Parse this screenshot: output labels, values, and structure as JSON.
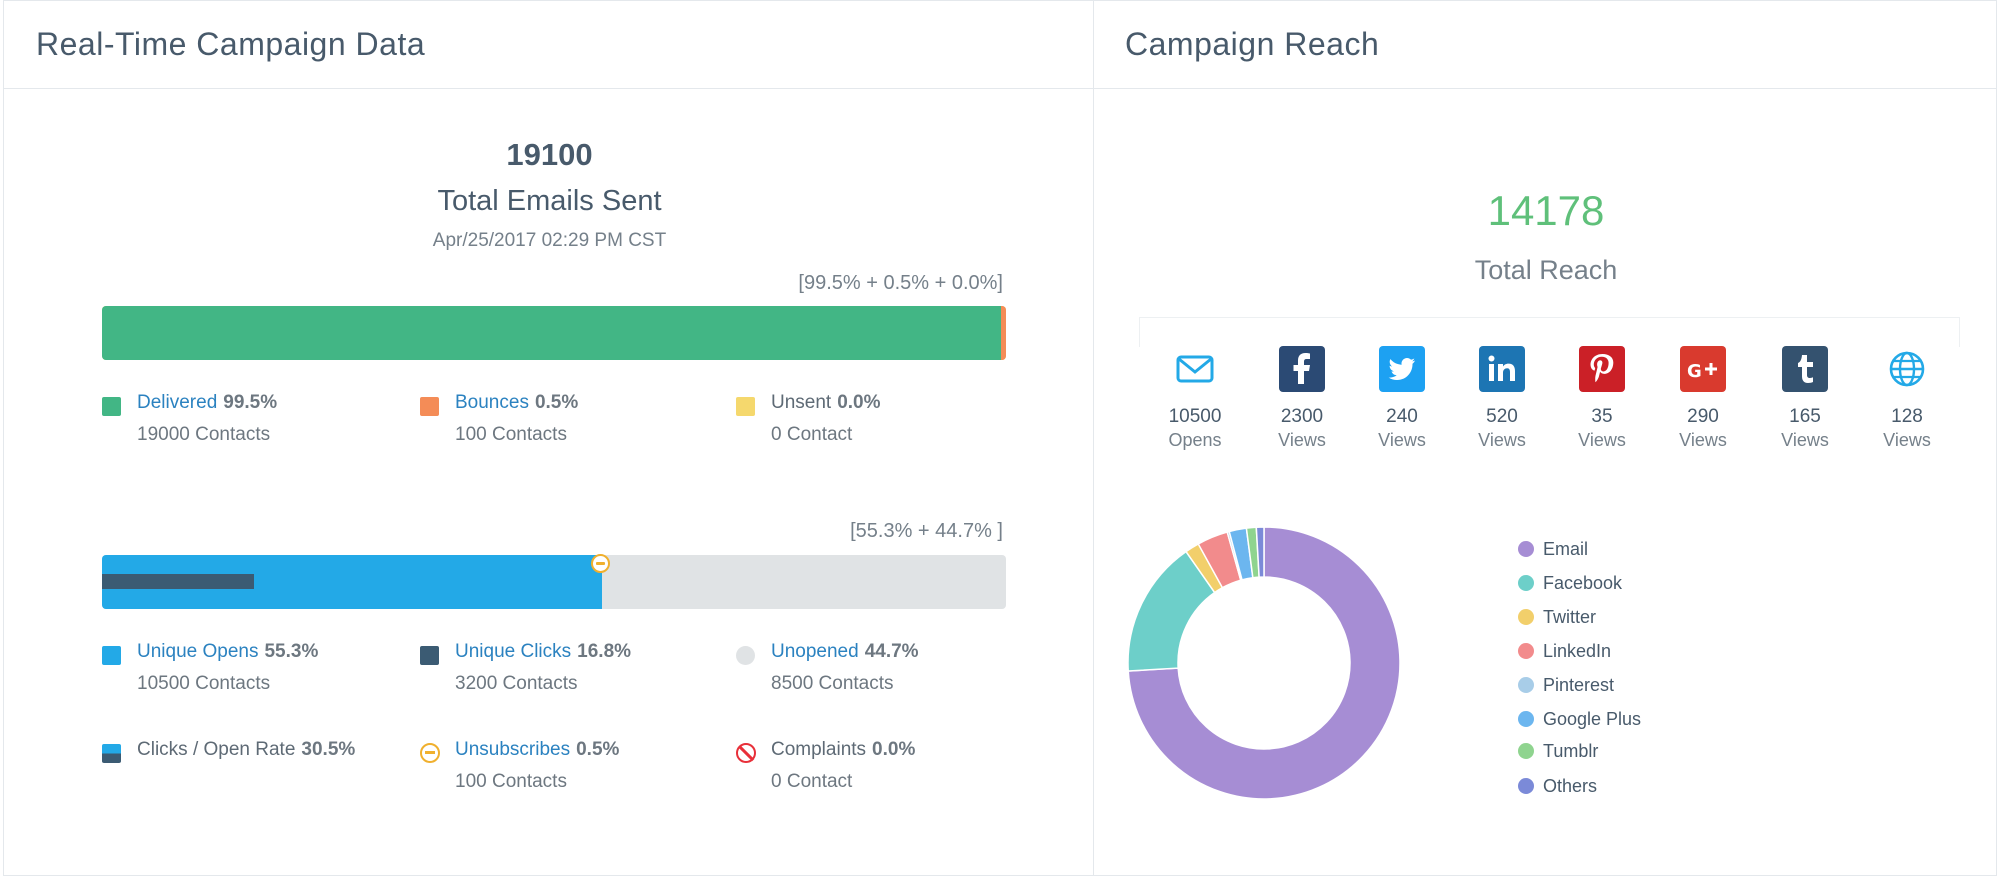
{
  "campaign": {
    "title": "Real-Time Campaign Data",
    "total_sent": "19100",
    "total_sent_label": "Total Emails Sent",
    "date": "Apr/25/2017 02:29 PM CST",
    "delivery_breakdown": "[99.5% + 0.5% + 0.0%]",
    "opens_breakdown": "[55.3% + 44.7% ]",
    "delivery_bar": {
      "delivered": 0.995,
      "bounces": 0.005,
      "unsent": 0.0
    },
    "opens_bar": {
      "opens": 0.553,
      "clicks": 0.168,
      "unopened": 0.447,
      "unsubscribes_marker": 0.553
    },
    "stats": {
      "delivered": {
        "label": "Delivered",
        "pct": "99.5%",
        "sub": "19000 Contacts",
        "color": "#42b685"
      },
      "bounces": {
        "label": "Bounces",
        "pct": "0.5%",
        "sub": "100 Contacts",
        "color": "#f48c57"
      },
      "unsent": {
        "label": "Unsent",
        "pct": "0.0%",
        "sub": "0 Contact",
        "color": "#f5d86d"
      },
      "unique_opens": {
        "label": "Unique Opens",
        "pct": "55.3%",
        "sub": "10500 Contacts",
        "color": "#23a9e7"
      },
      "unique_clicks": {
        "label": "Unique Clicks",
        "pct": "16.8%",
        "sub": "3200 Contacts",
        "color": "#3b5b73"
      },
      "unopened": {
        "label": "Unopened",
        "pct": "44.7%",
        "sub": "8500 Contacts",
        "color": "#e0e3e5"
      },
      "click_open_rate": {
        "label": "Clicks / Open Rate",
        "pct": "30.5%"
      },
      "unsubscribes": {
        "label": "Unsubscribes",
        "pct": "0.5%",
        "sub": "100 Contacts",
        "color": "#f0b02e"
      },
      "complaints": {
        "label": "Complaints",
        "pct": "0.0%",
        "sub": "0 Contact",
        "color": "#e8303a"
      }
    }
  },
  "reach": {
    "title": "Campaign Reach",
    "total": "14178",
    "total_label": "Total Reach",
    "channels": [
      {
        "name": "email",
        "icon": "envelope-icon",
        "value": "10500",
        "unit": "Opens",
        "color": "#23a9e7"
      },
      {
        "name": "facebook",
        "icon": "facebook-icon",
        "value": "2300",
        "unit": "Views",
        "color": "#2b4a74"
      },
      {
        "name": "twitter",
        "icon": "twitter-icon",
        "value": "240",
        "unit": "Views",
        "color": "#1da1f2"
      },
      {
        "name": "linkedin",
        "icon": "linkedin-icon",
        "value": "520",
        "unit": "Views",
        "color": "#1d75b3"
      },
      {
        "name": "pinterest",
        "icon": "pinterest-icon",
        "value": "35",
        "unit": "Views",
        "color": "#cb2027"
      },
      {
        "name": "google-plus",
        "icon": "google-plus-icon",
        "value": "290",
        "unit": "Views",
        "color": "#d93a2e"
      },
      {
        "name": "tumblr",
        "icon": "tumblr-icon",
        "value": "165",
        "unit": "Views",
        "color": "#34526f"
      },
      {
        "name": "others",
        "icon": "globe-icon",
        "value": "128",
        "unit": "Views",
        "color": "#23a9e7"
      }
    ]
  },
  "chart_data": {
    "type": "pie",
    "donut": true,
    "legend_position": "right",
    "categories": [
      "Email",
      "Facebook",
      "Twitter",
      "LinkedIn",
      "Pinterest",
      "Google Plus",
      "Tumblr",
      "Others"
    ],
    "values": [
      10500,
      2300,
      240,
      520,
      35,
      290,
      165,
      128
    ],
    "colors": [
      "#a68dd4",
      "#6dcfc9",
      "#f2cf6b",
      "#f28b8c",
      "#a8cde8",
      "#6cb6ef",
      "#8fd48f",
      "#7b8ad8"
    ]
  }
}
